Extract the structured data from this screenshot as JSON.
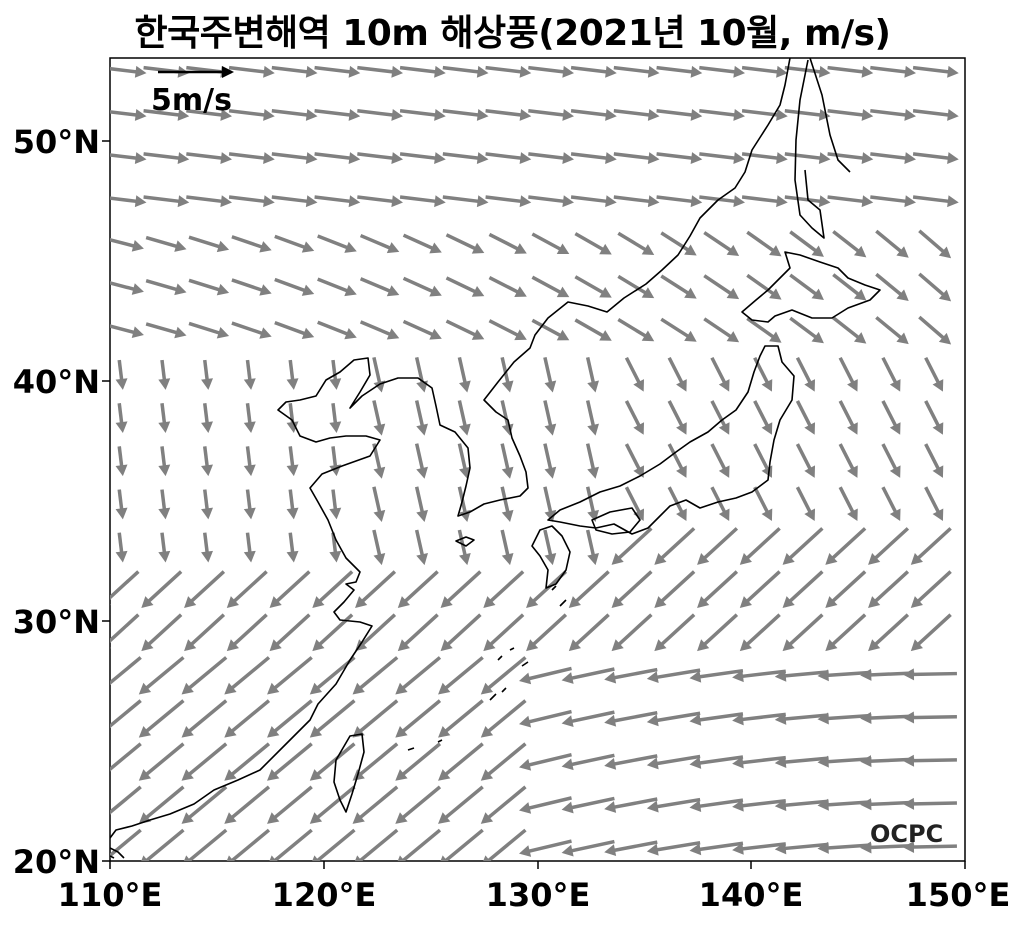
{
  "title": "한국주변해역 10m 해상풍(2021년 10월, m/s)",
  "map": {
    "lon_range": [
      110,
      150
    ],
    "lat_range": [
      20,
      53.5
    ],
    "lon_ticks": [
      110,
      120,
      130,
      140,
      150
    ],
    "lat_ticks": [
      20,
      30,
      40,
      50
    ],
    "lon_tick_labels": [
      "110°E",
      "120°E",
      "130°E",
      "140°E",
      "150°E"
    ],
    "lat_tick_labels": [
      "20°N",
      "30°N",
      "40°N",
      "50°N"
    ],
    "coastline_color": "#000000",
    "arrow_color": "#808080"
  },
  "scale_arrow": {
    "label": "5m/s",
    "speed": 5
  },
  "logo": "OCPC"
}
